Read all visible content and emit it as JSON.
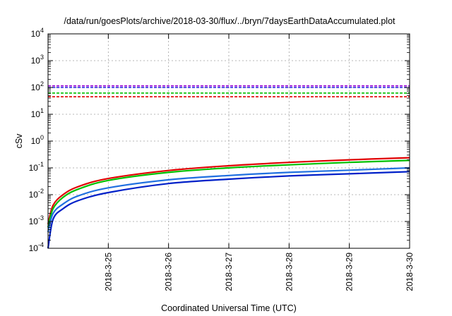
{
  "chart_data": {
    "type": "line",
    "title": "/data/run/goesPlots/archive/2018-03-30/flux/../bryn/7daysEarthDataAccumulated.plot",
    "xlabel": "Coordinated Universal Time (UTC)",
    "ylabel": "cSv",
    "xlim": [
      "2018-03-24 00:00",
      "2018-03-30 00:00"
    ],
    "ylim": [
      0.0001,
      10000
    ],
    "yscale": "log",
    "grid": true,
    "x_ticks": [
      "2018-3-25",
      "2018-3-26",
      "2018-3-27",
      "2018-3-28",
      "2018-3-29",
      "2018-3-30"
    ],
    "y_ticks": [
      {
        "value": 0.0001,
        "base": "10",
        "exp": "-4"
      },
      {
        "value": 0.001,
        "base": "10",
        "exp": "-3"
      },
      {
        "value": 0.01,
        "base": "10",
        "exp": "-2"
      },
      {
        "value": 0.1,
        "base": "10",
        "exp": "-1"
      },
      {
        "value": 1,
        "base": "10",
        "exp": "0"
      },
      {
        "value": 10,
        "base": "10",
        "exp": "1"
      },
      {
        "value": 100,
        "base": "10",
        "exp": "2"
      },
      {
        "value": 1000,
        "base": "10",
        "exp": "3"
      },
      {
        "value": 10000,
        "base": "10",
        "exp": "4"
      }
    ],
    "thresholds": [
      {
        "value": 115,
        "color": "#9400d3"
      },
      {
        "value": 100,
        "color": "#2020e0"
      },
      {
        "value": 62,
        "color": "#00c000"
      },
      {
        "value": 45,
        "color": "#e00000"
      }
    ],
    "series": [
      {
        "color": "#e00000",
        "x": [
          "2018-03-24 00:00",
          "2018-03-24 02:00",
          "2018-03-24 06:00",
          "2018-03-24 12:00",
          "2018-03-25 00:00",
          "2018-03-26 00:00",
          "2018-03-27 00:00",
          "2018-03-28 00:00",
          "2018-03-29 00:00",
          "2018-03-30 00:00"
        ],
        "y": [
          0.0008,
          0.004,
          0.01,
          0.02,
          0.04,
          0.08,
          0.12,
          0.16,
          0.2,
          0.24
        ]
      },
      {
        "color": "#00c000",
        "x": [
          "2018-03-24 00:00",
          "2018-03-24 02:00",
          "2018-03-24 06:00",
          "2018-03-24 12:00",
          "2018-03-25 00:00",
          "2018-03-26 00:00",
          "2018-03-27 00:00",
          "2018-03-28 00:00",
          "2018-03-29 00:00",
          "2018-03-30 00:00"
        ],
        "y": [
          0.0006,
          0.003,
          0.008,
          0.016,
          0.034,
          0.068,
          0.1,
          0.13,
          0.16,
          0.19
        ]
      },
      {
        "color": "#2070e0",
        "x": [
          "2018-03-24 00:00",
          "2018-03-24 02:00",
          "2018-03-24 06:00",
          "2018-03-24 12:00",
          "2018-03-25 00:00",
          "2018-03-26 00:00",
          "2018-03-27 00:00",
          "2018-03-28 00:00",
          "2018-03-29 00:00",
          "2018-03-30 00:00"
        ],
        "y": [
          0.0004,
          0.002,
          0.0045,
          0.009,
          0.018,
          0.036,
          0.052,
          0.068,
          0.082,
          0.1
        ]
      },
      {
        "color": "#0020c8",
        "x": [
          "2018-03-24 00:00",
          "2018-03-24 02:00",
          "2018-03-24 06:00",
          "2018-03-24 12:00",
          "2018-03-25 00:00",
          "2018-03-26 00:00",
          "2018-03-27 00:00",
          "2018-03-28 00:00",
          "2018-03-29 00:00",
          "2018-03-30 00:00"
        ],
        "y": [
          0.0001,
          0.0012,
          0.003,
          0.006,
          0.012,
          0.026,
          0.038,
          0.05,
          0.06,
          0.072
        ]
      }
    ]
  }
}
